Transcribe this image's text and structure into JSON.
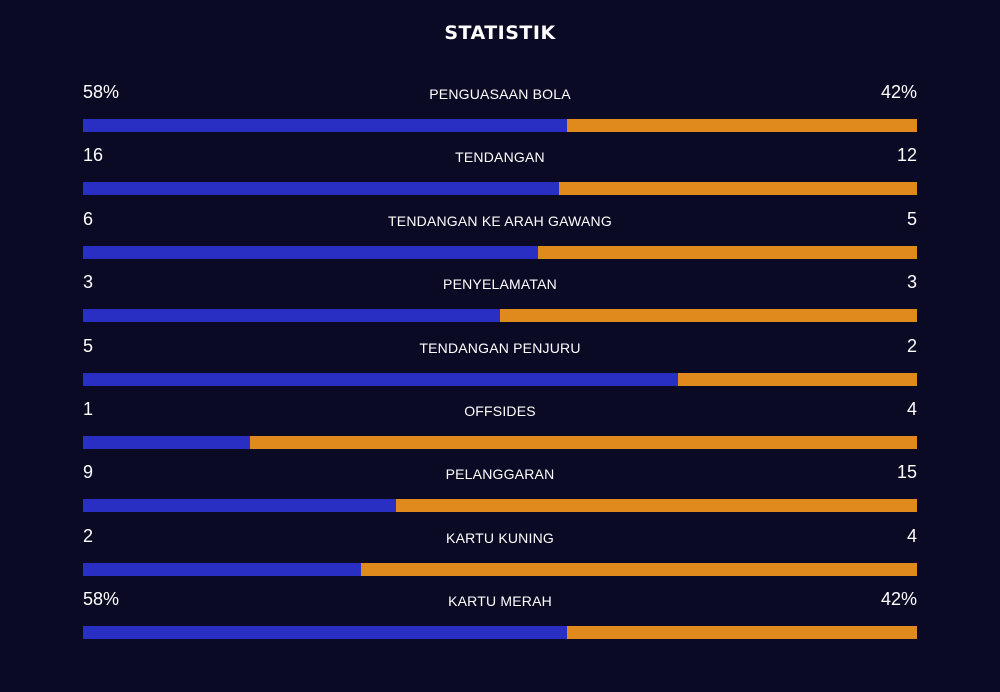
{
  "title": "STATISTIK",
  "colors": {
    "background": "#0a0a24",
    "home": "#2a2fc4",
    "away": "#e08a1e"
  },
  "stats": [
    {
      "label": "PENGUASAAN BOLA",
      "left": "58%",
      "right": "42%",
      "home_share": 0.58
    },
    {
      "label": "TENDANGAN",
      "left": "16",
      "right": "12",
      "home_share": 0.571
    },
    {
      "label": "TENDANGAN KE ARAH GAWANG",
      "left": "6",
      "right": "5",
      "home_share": 0.545
    },
    {
      "label": "PENYELAMATAN",
      "left": "3",
      "right": "3",
      "home_share": 0.5
    },
    {
      "label": "TENDANGAN PENJURU",
      "left": "5",
      "right": "2",
      "home_share": 0.714
    },
    {
      "label": "OFFSIDES",
      "left": "1",
      "right": "4",
      "home_share": 0.2
    },
    {
      "label": "PELANGGARAN",
      "left": "9",
      "right": "15",
      "home_share": 0.375
    },
    {
      "label": "KARTU KUNING",
      "left": "2",
      "right": "4",
      "home_share": 0.333
    },
    {
      "label": "KARTU MERAH",
      "left": "58%",
      "right": "42%",
      "home_share": 0.58
    }
  ]
}
